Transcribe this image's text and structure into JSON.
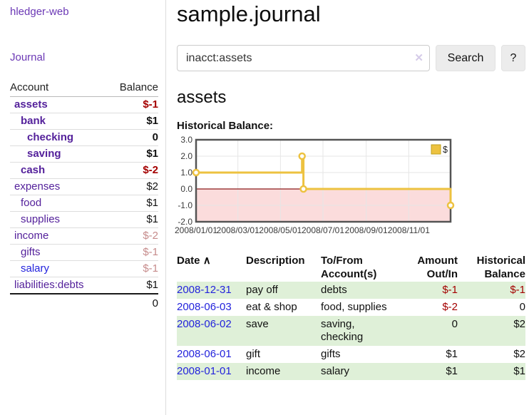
{
  "sidebar": {
    "brand": "hledger-web",
    "journal_link": "Journal",
    "account_header": "Account",
    "balance_header": "Balance",
    "accounts": [
      {
        "name": "assets",
        "balance": "$-1",
        "indent": 0,
        "bold": true
      },
      {
        "name": "bank",
        "balance": "$1",
        "indent": 1,
        "bold": true
      },
      {
        "name": "checking",
        "balance": "0",
        "indent": 2,
        "bold": true
      },
      {
        "name": "saving",
        "balance": "$1",
        "indent": 2,
        "bold": true
      },
      {
        "name": "cash",
        "balance": "$-2",
        "indent": 1,
        "bold": true
      },
      {
        "name": "expenses",
        "balance": "$2",
        "indent": 0,
        "bold": false
      },
      {
        "name": "food",
        "balance": "$1",
        "indent": 1,
        "bold": false
      },
      {
        "name": "supplies",
        "balance": "$1",
        "indent": 1,
        "bold": false
      },
      {
        "name": "income",
        "balance": "$-2",
        "indent": 0,
        "bold": false
      },
      {
        "name": "gifts",
        "balance": "$-1",
        "indent": 1,
        "bold": false
      },
      {
        "name": "salary",
        "balance": "$-1",
        "indent": 1,
        "bold": false,
        "blue": true
      },
      {
        "name": "liabilities:debts",
        "balance": "$1",
        "indent": 0,
        "bold": false
      }
    ],
    "total": "0"
  },
  "header": {
    "title": "sample.journal"
  },
  "search": {
    "value": "inacct:assets",
    "clear_icon": "✕",
    "button_label": "Search",
    "help_label": "?"
  },
  "account_page": {
    "title": "assets",
    "chart_label": "Historical Balance:"
  },
  "chart_data": {
    "type": "line",
    "style": "step",
    "title": "Historical Balance:",
    "series": [
      {
        "name": "$",
        "color": "#edc240",
        "points": [
          [
            "2008-01-01",
            1
          ],
          [
            "2008-06-01",
            2
          ],
          [
            "2008-06-03",
            0
          ],
          [
            "2008-12-31",
            -1
          ]
        ]
      }
    ],
    "ylim": [
      -2,
      3
    ],
    "yticks": [
      3,
      2,
      1,
      0,
      -1,
      -2
    ],
    "xrange": [
      "2008-01-01",
      "2008-12-31"
    ],
    "xticks": [
      "2008-01-01",
      "2008-03-01",
      "2008-05-01",
      "2008-07-01",
      "2008-09-01",
      "2008-11-01"
    ],
    "negative_band_color": "#fbdcdc",
    "zero_line_color": "#8b1a1a",
    "grid": true,
    "legend_position": "top-right"
  },
  "journal": {
    "sort_icon": "∧",
    "headers": {
      "date": "Date",
      "description": "Description",
      "accounts": "To/From Account(s)",
      "amount": "Amount Out/In",
      "balance": "Historical Balance"
    },
    "rows": [
      {
        "date": "2008-12-31",
        "description": "pay off",
        "accounts": "debts",
        "amount": "$-1",
        "balance": "$-1"
      },
      {
        "date": "2008-06-03",
        "description": "eat & shop",
        "accounts": "food, supplies",
        "amount": "$-2",
        "balance": "0"
      },
      {
        "date": "2008-06-02",
        "description": "save",
        "accounts": "saving,\nchecking",
        "amount": "0",
        "balance": "$2"
      },
      {
        "date": "2008-06-01",
        "description": "gift",
        "accounts": "gifts",
        "amount": "$1",
        "balance": "$2"
      },
      {
        "date": "2008-01-01",
        "description": "income",
        "accounts": "salary",
        "amount": "$1",
        "balance": "$1"
      }
    ]
  },
  "colors": {
    "link_purple": "#54219b",
    "link_blue": "#2323dd",
    "negative_dark": "#a40000",
    "negative_light": "#c68b8b",
    "row_stripe_green": "#dff0d8",
    "chart_line_gold": "#edc240"
  }
}
